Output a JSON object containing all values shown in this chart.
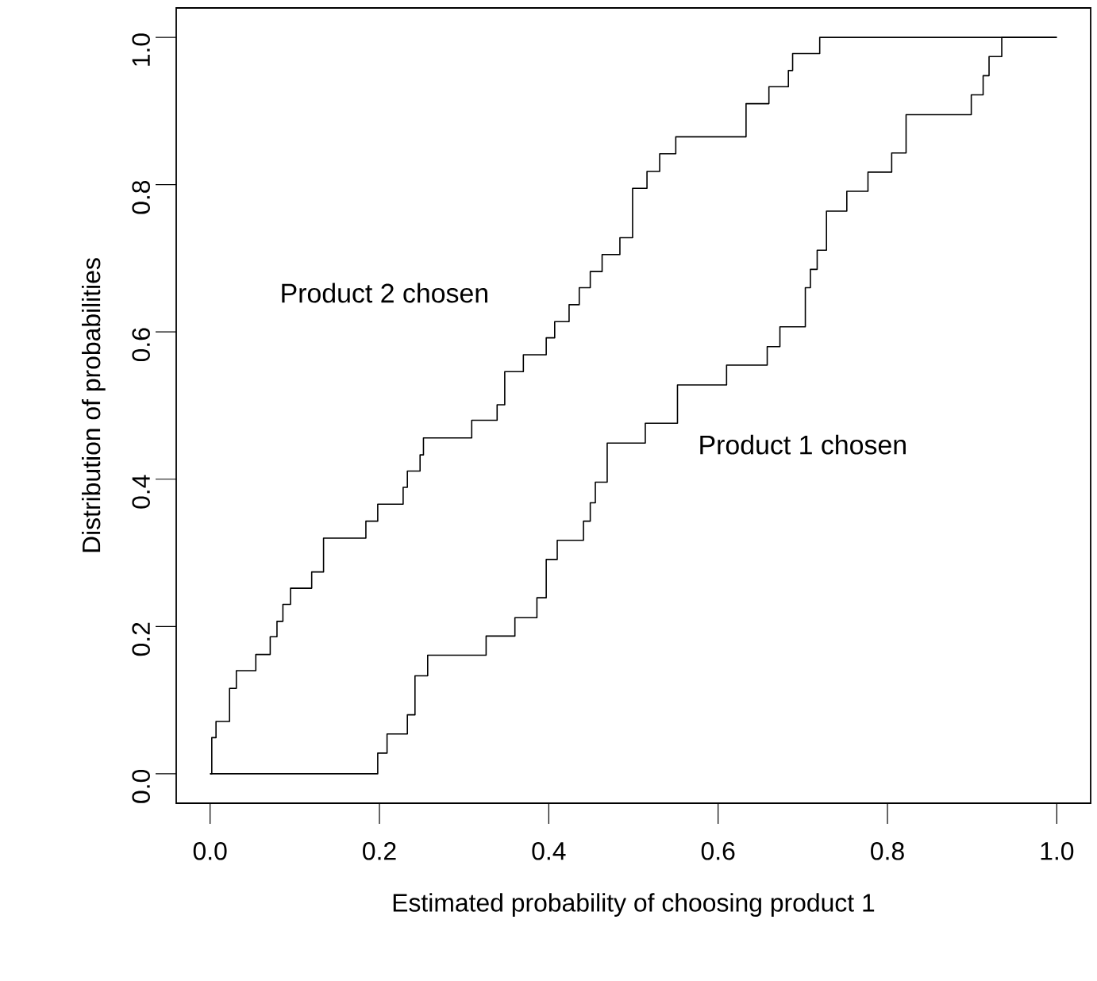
{
  "chart_data": {
    "type": "step",
    "xlabel": "Estimated probability of choosing product 1",
    "ylabel": "Distribution of probabilities",
    "xlim": [
      -0.04,
      1.04
    ],
    "ylim": [
      -0.04,
      1.04
    ],
    "xticks": [
      {
        "value": 0,
        "label": "0.0"
      },
      0.2,
      0.4,
      0.6,
      0.8,
      {
        "value": 1,
        "label": "1.0"
      }
    ],
    "yticks": [
      {
        "value": 0,
        "label": "0.0"
      },
      0.2,
      0.4,
      0.6,
      0.8,
      {
        "value": 1,
        "label": "1.0"
      }
    ],
    "series": [
      {
        "name": "Product 2 chosen",
        "color": "#000000",
        "x": [
          0,
          0.002,
          0.007,
          0.023,
          0.031,
          0.054,
          0.071,
          0.079,
          0.086,
          0.095,
          0.12,
          0.134,
          0.184,
          0.198,
          0.228,
          0.233,
          0.248,
          0.252,
          0.309,
          0.339,
          0.348,
          0.37,
          0.397,
          0.407,
          0.424,
          0.436,
          0.449,
          0.463,
          0.484,
          0.499,
          0.516,
          0.531,
          0.55,
          0.633,
          0.66,
          0.683,
          0.688,
          0.72,
          1.0
        ],
        "values": [
          0,
          0.049,
          0.071,
          0.116,
          0.14,
          0.162,
          0.186,
          0.207,
          0.23,
          0.252,
          0.274,
          0.32,
          0.343,
          0.366,
          0.389,
          0.411,
          0.433,
          0.456,
          0.48,
          0.501,
          0.546,
          0.569,
          0.592,
          0.614,
          0.637,
          0.66,
          0.682,
          0.705,
          0.728,
          0.795,
          0.818,
          0.842,
          0.865,
          0.91,
          0.933,
          0.955,
          0.978,
          1.0,
          1.0
        ]
      },
      {
        "name": "Product 1 chosen",
        "color": "#000000",
        "x": [
          0,
          0.198,
          0.209,
          0.233,
          0.242,
          0.257,
          0.326,
          0.36,
          0.386,
          0.397,
          0.41,
          0.441,
          0.449,
          0.455,
          0.469,
          0.514,
          0.552,
          0.61,
          0.658,
          0.673,
          0.703,
          0.709,
          0.717,
          0.728,
          0.752,
          0.777,
          0.805,
          0.822,
          0.899,
          0.913,
          0.92,
          0.935,
          1.0
        ],
        "values": [
          0,
          0.028,
          0.054,
          0.08,
          0.133,
          0.161,
          0.187,
          0.212,
          0.239,
          0.291,
          0.317,
          0.343,
          0.368,
          0.396,
          0.449,
          0.476,
          0.528,
          0.555,
          0.58,
          0.607,
          0.66,
          0.685,
          0.711,
          0.764,
          0.791,
          0.817,
          0.843,
          0.895,
          0.922,
          0.948,
          0.974,
          1.0,
          1.0
        ]
      }
    ]
  }
}
